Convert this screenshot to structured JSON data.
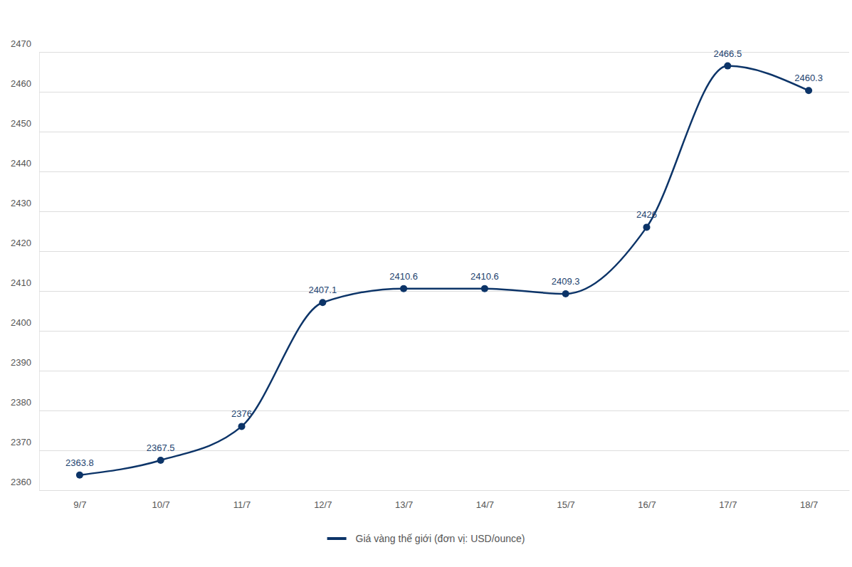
{
  "chart_data": {
    "type": "line",
    "categories": [
      "9/7",
      "10/7",
      "11/7",
      "12/7",
      "13/7",
      "14/7",
      "15/7",
      "16/7",
      "17/7",
      "18/7"
    ],
    "series": [
      {
        "name": "Giá vàng thế giới (đơn vị: USD/ounce)",
        "color": "#0c3468",
        "marker": "circle",
        "values": [
          2363.8,
          2367.5,
          2376,
          2407.1,
          2410.6,
          2410.6,
          2409.3,
          2426,
          2466.5,
          2460.3
        ]
      }
    ],
    "ylim": [
      2360,
      2470
    ],
    "yticks": [
      2360,
      2370,
      2380,
      2390,
      2400,
      2410,
      2420,
      2430,
      2440,
      2450,
      2460,
      2470
    ],
    "grid": true,
    "data_labels": true,
    "legend": "bottom"
  }
}
